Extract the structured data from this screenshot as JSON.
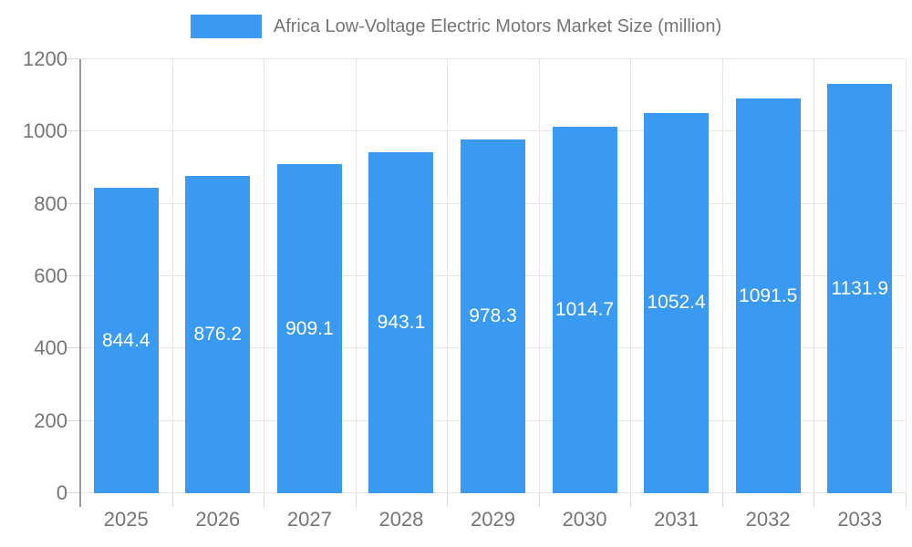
{
  "legend": {
    "label": "Africa Low-Voltage Electric Motors Market Size (million)"
  },
  "chart_data": {
    "type": "bar",
    "title": "Africa Low-Voltage Electric Motors Market Size (million)",
    "categories": [
      "2025",
      "2026",
      "2027",
      "2028",
      "2029",
      "2030",
      "2031",
      "2032",
      "2033"
    ],
    "series": [
      {
        "name": "Africa Low-Voltage Electric Motors Market Size (million)",
        "values": [
          844.4,
          876.2,
          909.1,
          943.1,
          978.3,
          1014.7,
          1052.4,
          1091.5,
          1131.9
        ]
      }
    ],
    "xlabel": "",
    "ylabel": "",
    "ylim": [
      0,
      1200
    ],
    "yticks": [
      0,
      200,
      400,
      600,
      800,
      1000,
      1200
    ],
    "grid": true,
    "legend_position": "top-center",
    "value_labels": "inside-center"
  },
  "colors": {
    "bar": "#3a99f0",
    "axis_text": "#757575",
    "grid_line": "#e6e6e6",
    "tick_line": "#d9d9d9",
    "axis_line": "#999999",
    "value_label": "#ffffff",
    "background": "#ffffff"
  }
}
